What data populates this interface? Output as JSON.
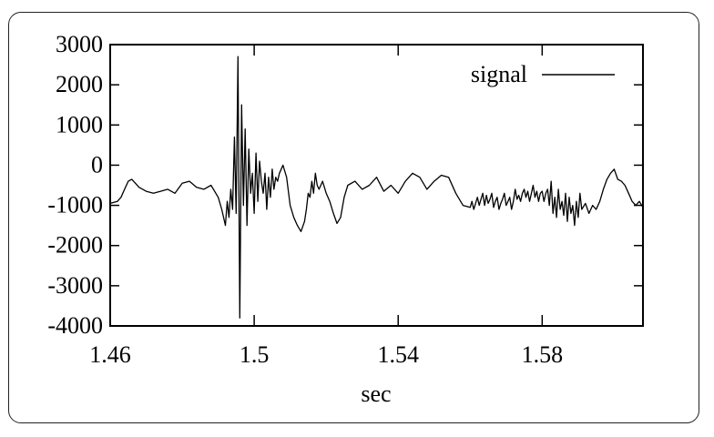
{
  "chart_data": {
    "type": "line",
    "xlabel": "sec",
    "ylabel": "",
    "xlim": [
      1.46,
      1.608
    ],
    "ylim": [
      -4000,
      3000
    ],
    "xticks": [
      1.46,
      1.5,
      1.54,
      1.58
    ],
    "xtick_labels": [
      "1.46",
      "1.5",
      "1.54",
      "1.58"
    ],
    "yticks": [
      3000,
      2000,
      1000,
      0,
      -1000,
      -2000,
      -3000,
      -4000
    ],
    "ytick_labels": [
      "3000",
      "2000",
      "1000",
      "0",
      "-1000",
      "-2000",
      "-3000",
      "-4000"
    ],
    "legend": {
      "position": "top-right"
    },
    "series": [
      {
        "name": "signal",
        "color": "#000000",
        "x": [
          1.46,
          1.462,
          1.463,
          1.464,
          1.465,
          1.466,
          1.467,
          1.468,
          1.47,
          1.472,
          1.474,
          1.476,
          1.478,
          1.48,
          1.482,
          1.484,
          1.486,
          1.488,
          1.49,
          1.491,
          1.492,
          1.4925,
          1.493,
          1.4935,
          1.494,
          1.4945,
          1.495,
          1.4955,
          1.496,
          1.4965,
          1.497,
          1.4975,
          1.498,
          1.4985,
          1.499,
          1.4995,
          1.5,
          1.5005,
          1.501,
          1.5015,
          1.502,
          1.5025,
          1.503,
          1.5035,
          1.504,
          1.5045,
          1.505,
          1.5055,
          1.506,
          1.5065,
          1.507,
          1.5075,
          1.508,
          1.509,
          1.51,
          1.511,
          1.512,
          1.513,
          1.514,
          1.5145,
          1.515,
          1.5155,
          1.516,
          1.5165,
          1.517,
          1.5175,
          1.518,
          1.519,
          1.52,
          1.521,
          1.522,
          1.523,
          1.524,
          1.525,
          1.526,
          1.528,
          1.53,
          1.532,
          1.534,
          1.536,
          1.538,
          1.54,
          1.542,
          1.544,
          1.546,
          1.548,
          1.55,
          1.552,
          1.554,
          1.556,
          1.558,
          1.56,
          1.5605,
          1.561,
          1.5615,
          1.562,
          1.5625,
          1.563,
          1.5635,
          1.564,
          1.5645,
          1.565,
          1.5655,
          1.566,
          1.5665,
          1.567,
          1.5675,
          1.568,
          1.5685,
          1.569,
          1.5695,
          1.57,
          1.5705,
          1.571,
          1.5715,
          1.572,
          1.5725,
          1.573,
          1.5735,
          1.574,
          1.5745,
          1.575,
          1.5755,
          1.576,
          1.5765,
          1.577,
          1.5775,
          1.578,
          1.5785,
          1.579,
          1.5795,
          1.58,
          1.5805,
          1.581,
          1.5815,
          1.582,
          1.5825,
          1.583,
          1.5835,
          1.584,
          1.5845,
          1.585,
          1.5855,
          1.586,
          1.5865,
          1.587,
          1.5875,
          1.588,
          1.5885,
          1.589,
          1.5895,
          1.59,
          1.5905,
          1.591,
          1.592,
          1.593,
          1.594,
          1.595,
          1.596,
          1.597,
          1.598,
          1.599,
          1.6,
          1.601,
          1.602,
          1.603,
          1.604,
          1.605,
          1.606,
          1.607,
          1.608
        ],
        "y": [
          -950,
          -900,
          -800,
          -600,
          -400,
          -350,
          -450,
          -550,
          -650,
          -700,
          -650,
          -600,
          -700,
          -450,
          -400,
          -550,
          -600,
          -500,
          -800,
          -1100,
          -1500,
          -900,
          -1300,
          -600,
          -1100,
          700,
          -1200,
          2700,
          -3800,
          1500,
          -1000,
          900,
          -1500,
          400,
          -700,
          -200,
          -1200,
          300,
          -900,
          100,
          -400,
          -700,
          -200,
          -1100,
          -300,
          -800,
          -100,
          -600,
          -300,
          -400,
          -200,
          -100,
          0,
          -300,
          -1000,
          -1300,
          -1500,
          -1650,
          -1400,
          -1100,
          -700,
          -800,
          -400,
          -700,
          -200,
          -500,
          -600,
          -400,
          -700,
          -900,
          -1200,
          -1450,
          -1300,
          -800,
          -500,
          -400,
          -600,
          -500,
          -300,
          -650,
          -500,
          -700,
          -400,
          -200,
          -300,
          -600,
          -400,
          -250,
          -300,
          -700,
          -1000,
          -1050,
          -900,
          -1100,
          -950,
          -800,
          -1000,
          -850,
          -700,
          -1000,
          -750,
          -950,
          -850,
          -700,
          -1050,
          -900,
          -800,
          -1100,
          -950,
          -850,
          -700,
          -1000,
          -900,
          -800,
          -1100,
          -900,
          -600,
          -850,
          -750,
          -900,
          -700,
          -600,
          -800,
          -650,
          -900,
          -700,
          -500,
          -800,
          -650,
          -900,
          -700,
          -650,
          -900,
          -700,
          -600,
          -1000,
          -400,
          -1200,
          -800,
          -1300,
          -600,
          -1100,
          -900,
          -1250,
          -700,
          -1400,
          -800,
          -1200,
          -1000,
          -1500,
          -900,
          -1300,
          -700,
          -1100,
          -950,
          -1200,
          -1000,
          -1100,
          -900,
          -600,
          -350,
          -200,
          -100,
          -350,
          -400,
          -500,
          -700,
          -900,
          -1000,
          -900,
          -1050
        ]
      }
    ]
  }
}
